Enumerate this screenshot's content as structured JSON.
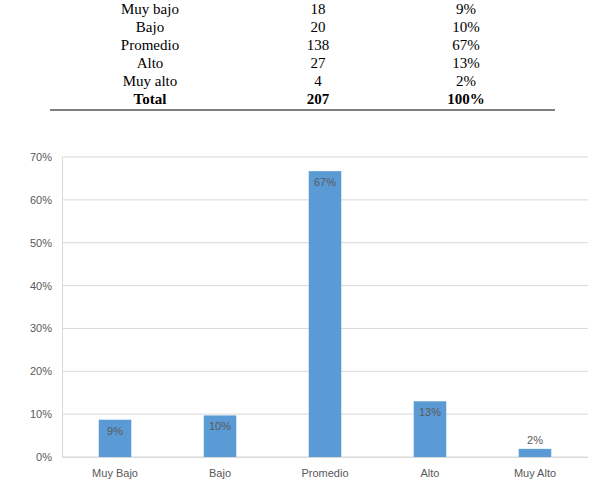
{
  "table": {
    "rows": [
      [
        "Muy bajo",
        "18",
        "9%"
      ],
      [
        "Bajo",
        "20",
        "10%"
      ],
      [
        "Promedio",
        "138",
        "67%"
      ],
      [
        "Alto",
        "27",
        "13%"
      ],
      [
        "Muy alto",
        "4",
        "2%"
      ]
    ],
    "total": [
      "Total",
      "207",
      "100%"
    ]
  },
  "chart_data": {
    "type": "bar",
    "categories": [
      "Muy Bajo",
      "Bajo",
      "Promedio",
      "Alto",
      "Muy Alto"
    ],
    "values": [
      8.7,
      9.7,
      66.7,
      13.0,
      1.9
    ],
    "value_labels": [
      "9%",
      "10%",
      "67%",
      "13%",
      "2%"
    ],
    "data_labels": true,
    "color": "#5b9bd5",
    "ylim": [
      0,
      70
    ],
    "yticks": [
      {
        "value": 0,
        "label": "0%"
      },
      {
        "value": 10,
        "label": "10%"
      },
      {
        "value": 20,
        "label": "20%"
      },
      {
        "value": 30,
        "label": "30%"
      },
      {
        "value": 40,
        "label": "40%"
      },
      {
        "value": 50,
        "label": "50%"
      },
      {
        "value": 60,
        "label": "60%"
      },
      {
        "value": 70,
        "label": "70%"
      }
    ],
    "grid": true
  }
}
